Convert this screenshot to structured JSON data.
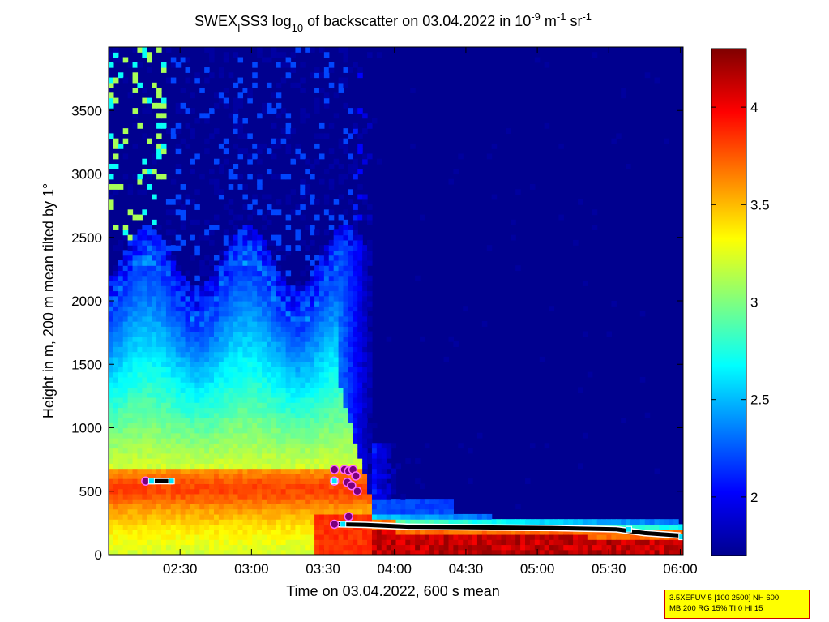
{
  "chart_data": {
    "type": "heatmap",
    "title": {
      "prefix": "SWEX",
      "prefix_sub": "I",
      "middle": "SS3 log",
      "log_sub": "10",
      "rest": " of backscatter on 03.04.2022 in 10",
      "exp1": "-9",
      "unit1": " m",
      "exp2": "-1",
      "unit2": " sr",
      "exp3": "-1"
    },
    "xlabel": "Time on 03.04.2022, 600 s mean",
    "ylabel": "Height in m, 200 m mean tilted by 1°",
    "x_ticks": [
      "02:30",
      "03:00",
      "03:30",
      "04:00",
      "04:30",
      "05:00",
      "05:30",
      "06:00"
    ],
    "x_tick_hours": [
      2.5,
      3.0,
      3.5,
      4.0,
      4.5,
      5.0,
      5.5,
      6.0
    ],
    "x_range_hours": [
      2.0,
      6.02
    ],
    "y_ticks": [
      0,
      500,
      1000,
      1500,
      2000,
      2500,
      3000,
      3500
    ],
    "y_tick_labels": [
      "0",
      "500",
      "1000",
      "1500",
      "2000",
      "2500",
      "3000",
      "3500"
    ],
    "y_range": [
      0,
      4000
    ],
    "colorbar": {
      "range": [
        1.7,
        4.3
      ],
      "ticks": [
        2,
        2.5,
        3,
        3.5,
        4
      ],
      "tick_labels": [
        "2",
        "2.5",
        "3",
        "3.5",
        "4"
      ],
      "colormap": "jet"
    },
    "cloud_base_markers": [
      {
        "x": 2.26,
        "y": 580
      },
      {
        "x": 3.58,
        "y": 670
      },
      {
        "x": 3.58,
        "y": 580
      },
      {
        "x": 3.65,
        "y": 670
      },
      {
        "x": 3.68,
        "y": 660
      },
      {
        "x": 3.71,
        "y": 670
      },
      {
        "x": 3.73,
        "y": 620
      },
      {
        "x": 3.67,
        "y": 570
      },
      {
        "x": 3.7,
        "y": 545
      },
      {
        "x": 3.74,
        "y": 500
      },
      {
        "x": 3.58,
        "y": 240
      },
      {
        "x": 3.68,
        "y": 300
      }
    ],
    "boundary_layer_line": [
      {
        "x": 2.28,
        "y": 580
      },
      {
        "x": 2.45,
        "y": 580
      }
    ],
    "boundary_layer_line2": [
      {
        "x": 3.58,
        "y": 240
      },
      {
        "x": 3.8,
        "y": 235
      },
      {
        "x": 4.1,
        "y": 220
      },
      {
        "x": 4.6,
        "y": 215
      },
      {
        "x": 5.1,
        "y": 210
      },
      {
        "x": 5.55,
        "y": 200
      },
      {
        "x": 5.75,
        "y": 170
      },
      {
        "x": 6.0,
        "y": 150
      }
    ],
    "cyan_squares": [
      {
        "x": 2.3,
        "y": 580
      },
      {
        "x": 2.44,
        "y": 580
      },
      {
        "x": 3.58,
        "y": 580
      },
      {
        "x": 3.64,
        "y": 240
      },
      {
        "x": 5.64,
        "y": 200
      },
      {
        "x": 6.01,
        "y": 140
      }
    ]
  },
  "info_box": {
    "line1": "3.5XEFUV 5 [100 2500] NH 600",
    "line2": "MB 200 RG 15% TI 0 HI 15"
  }
}
